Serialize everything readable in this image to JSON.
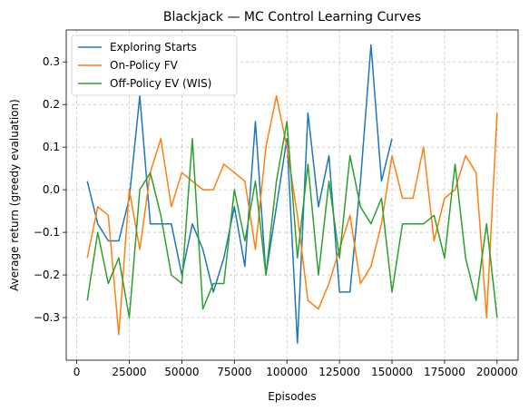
{
  "chart_data": {
    "type": "line",
    "title": "Blackjack — MC Control Learning Curves",
    "xlabel": "Episodes",
    "ylabel": "Average return (greedy evaluation)",
    "xlim": [
      -5000,
      210000
    ],
    "ylim": [
      -0.4,
      0.375
    ],
    "xticks": [
      0,
      25000,
      50000,
      75000,
      100000,
      125000,
      150000,
      175000,
      200000
    ],
    "yticks": [
      -0.3,
      -0.2,
      -0.1,
      0.0,
      0.1,
      0.2,
      0.3
    ],
    "xtick_labels": [
      "0",
      "25000",
      "50000",
      "75000",
      "100000",
      "125000",
      "150000",
      "175000",
      "200000"
    ],
    "ytick_labels": [
      "−0.3",
      "−0.2",
      "−0.1",
      "0.0",
      "0.1",
      "0.2",
      "0.3"
    ],
    "grid": true,
    "legend_position": "top-left",
    "series": [
      {
        "name": "Exploring Starts",
        "color": "#1f77b4",
        "x": [
          5000,
          10000,
          15000,
          20000,
          25000,
          30000,
          35000,
          40000,
          45000,
          50000,
          55000,
          60000,
          65000,
          70000,
          75000,
          80000,
          85000,
          90000,
          95000,
          100000,
          105000,
          110000,
          115000,
          120000,
          125000,
          130000,
          135000,
          140000,
          145000,
          150000
        ],
        "y": [
          0.02,
          -0.08,
          -0.12,
          -0.12,
          -0.02,
          0.22,
          -0.08,
          -0.08,
          -0.08,
          -0.2,
          -0.08,
          -0.14,
          -0.24,
          -0.16,
          -0.04,
          -0.18,
          0.16,
          -0.2,
          -0.04,
          0.12,
          -0.36,
          0.18,
          -0.04,
          0.08,
          -0.24,
          -0.24,
          0.02,
          0.34,
          0.02,
          0.12
        ]
      },
      {
        "name": "On-Policy FV",
        "color": "#ff7f0e",
        "x": [
          5000,
          10000,
          15000,
          20000,
          25000,
          30000,
          35000,
          40000,
          45000,
          50000,
          55000,
          60000,
          65000,
          70000,
          75000,
          80000,
          85000,
          90000,
          95000,
          100000,
          105000,
          110000,
          115000,
          120000,
          125000,
          130000,
          135000,
          140000,
          145000,
          150000,
          155000,
          160000,
          165000,
          170000,
          175000,
          180000,
          185000,
          190000,
          195000,
          200000
        ],
        "y": [
          -0.16,
          -0.04,
          -0.06,
          -0.34,
          0.0,
          -0.14,
          0.04,
          0.12,
          -0.04,
          0.04,
          0.02,
          0.0,
          0.0,
          0.06,
          0.04,
          0.02,
          -0.14,
          0.1,
          0.22,
          0.1,
          -0.06,
          -0.26,
          -0.28,
          -0.22,
          -0.14,
          -0.06,
          -0.22,
          -0.18,
          -0.08,
          0.08,
          -0.02,
          -0.02,
          0.1,
          -0.12,
          -0.02,
          0.0,
          0.08,
          0.04,
          -0.3,
          0.18
        ]
      },
      {
        "name": "Off-Policy EV (WIS)",
        "color": "#2ca02c",
        "x": [
          5000,
          10000,
          15000,
          20000,
          25000,
          30000,
          35000,
          40000,
          45000,
          50000,
          55000,
          60000,
          65000,
          70000,
          75000,
          80000,
          85000,
          90000,
          95000,
          100000,
          105000,
          110000,
          115000,
          120000,
          125000,
          130000,
          135000,
          140000,
          145000,
          150000,
          155000,
          160000,
          165000,
          170000,
          175000,
          180000,
          185000,
          190000,
          195000,
          200000
        ],
        "y": [
          -0.26,
          -0.1,
          -0.22,
          -0.16,
          -0.3,
          0.0,
          0.04,
          -0.06,
          -0.2,
          -0.22,
          0.12,
          -0.28,
          -0.22,
          -0.22,
          0.0,
          -0.12,
          0.02,
          -0.2,
          0.02,
          0.16,
          -0.16,
          0.06,
          -0.2,
          0.02,
          -0.16,
          0.08,
          -0.04,
          -0.08,
          -0.02,
          -0.24,
          -0.08,
          -0.08,
          -0.08,
          -0.06,
          -0.16,
          0.06,
          -0.16,
          -0.26,
          -0.08,
          -0.3
        ]
      }
    ]
  }
}
